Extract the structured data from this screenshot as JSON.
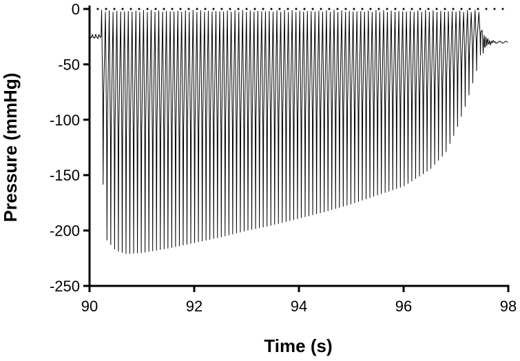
{
  "chart_data": {
    "type": "line",
    "title": "",
    "xlabel": "Time (s)",
    "ylabel": "Pressure (mmHg)",
    "xlim": [
      90,
      98
    ],
    "ylim": [
      -250,
      0
    ],
    "xticks": [
      90,
      92,
      94,
      96,
      98
    ],
    "yticks": [
      0,
      -50,
      -100,
      -150,
      -200,
      -250
    ],
    "grid": false,
    "legend": "none",
    "series": [
      {
        "oscillation_start_s": 90.22,
        "oscillation_end_s": 97.5,
        "baseline_mmHg": -25,
        "post_baseline_mmHg": -30,
        "peak_mmHg": -1,
        "cycle_count": 100,
        "trough_envelope": [
          {
            "x": 90.22,
            "y": -125
          },
          {
            "x": 90.32,
            "y": -208
          },
          {
            "x": 90.5,
            "y": -218
          },
          {
            "x": 90.7,
            "y": -221
          },
          {
            "x": 91.0,
            "y": -220
          },
          {
            "x": 91.5,
            "y": -216
          },
          {
            "x": 92.0,
            "y": -211
          },
          {
            "x": 92.5,
            "y": -206
          },
          {
            "x": 93.0,
            "y": -200
          },
          {
            "x": 93.5,
            "y": -195
          },
          {
            "x": 94.0,
            "y": -189
          },
          {
            "x": 94.5,
            "y": -183
          },
          {
            "x": 95.0,
            "y": -176
          },
          {
            "x": 95.5,
            "y": -168
          },
          {
            "x": 96.0,
            "y": -160
          },
          {
            "x": 96.5,
            "y": -145
          },
          {
            "x": 96.8,
            "y": -130
          },
          {
            "x": 97.0,
            "y": -110
          },
          {
            "x": 97.2,
            "y": -85
          },
          {
            "x": 97.4,
            "y": -55
          },
          {
            "x": 97.5,
            "y": -35
          }
        ]
      }
    ],
    "reference_line": {
      "y": 0,
      "style": "dotted"
    }
  },
  "colors": {
    "line": "#000000",
    "background": "#ffffff"
  }
}
